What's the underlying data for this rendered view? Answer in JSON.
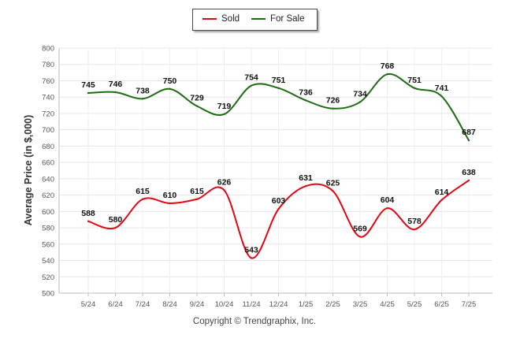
{
  "chart_data": {
    "type": "line",
    "title": "",
    "xlabel": "",
    "ylabel": "Average Price (in $,000)",
    "ylim": [
      500,
      800
    ],
    "yticks": [
      500,
      520,
      540,
      560,
      580,
      600,
      620,
      640,
      660,
      680,
      700,
      720,
      740,
      760,
      780,
      800
    ],
    "grid": true,
    "legend": "top-center",
    "categories": [
      "5/24",
      "6/24",
      "7/24",
      "8/24",
      "9/24",
      "10/24",
      "11/24",
      "12/24",
      "1/25",
      "2/25",
      "3/25",
      "4/25",
      "5/25",
      "6/25",
      "7/25"
    ],
    "series": [
      {
        "name": "Sold",
        "color": "#e30613",
        "values": [
          588,
          580,
          615,
          610,
          615,
          626,
          543,
          603,
          631,
          625,
          569,
          604,
          578,
          614,
          638
        ]
      },
      {
        "name": "For Sale",
        "color": "#1e6b12",
        "values": [
          745,
          746,
          738,
          750,
          729,
          719,
          754,
          751,
          736,
          726,
          734,
          768,
          751,
          741,
          687
        ]
      }
    ]
  },
  "footer": {
    "credit": "Copyright © Trendgraphix, Inc."
  }
}
